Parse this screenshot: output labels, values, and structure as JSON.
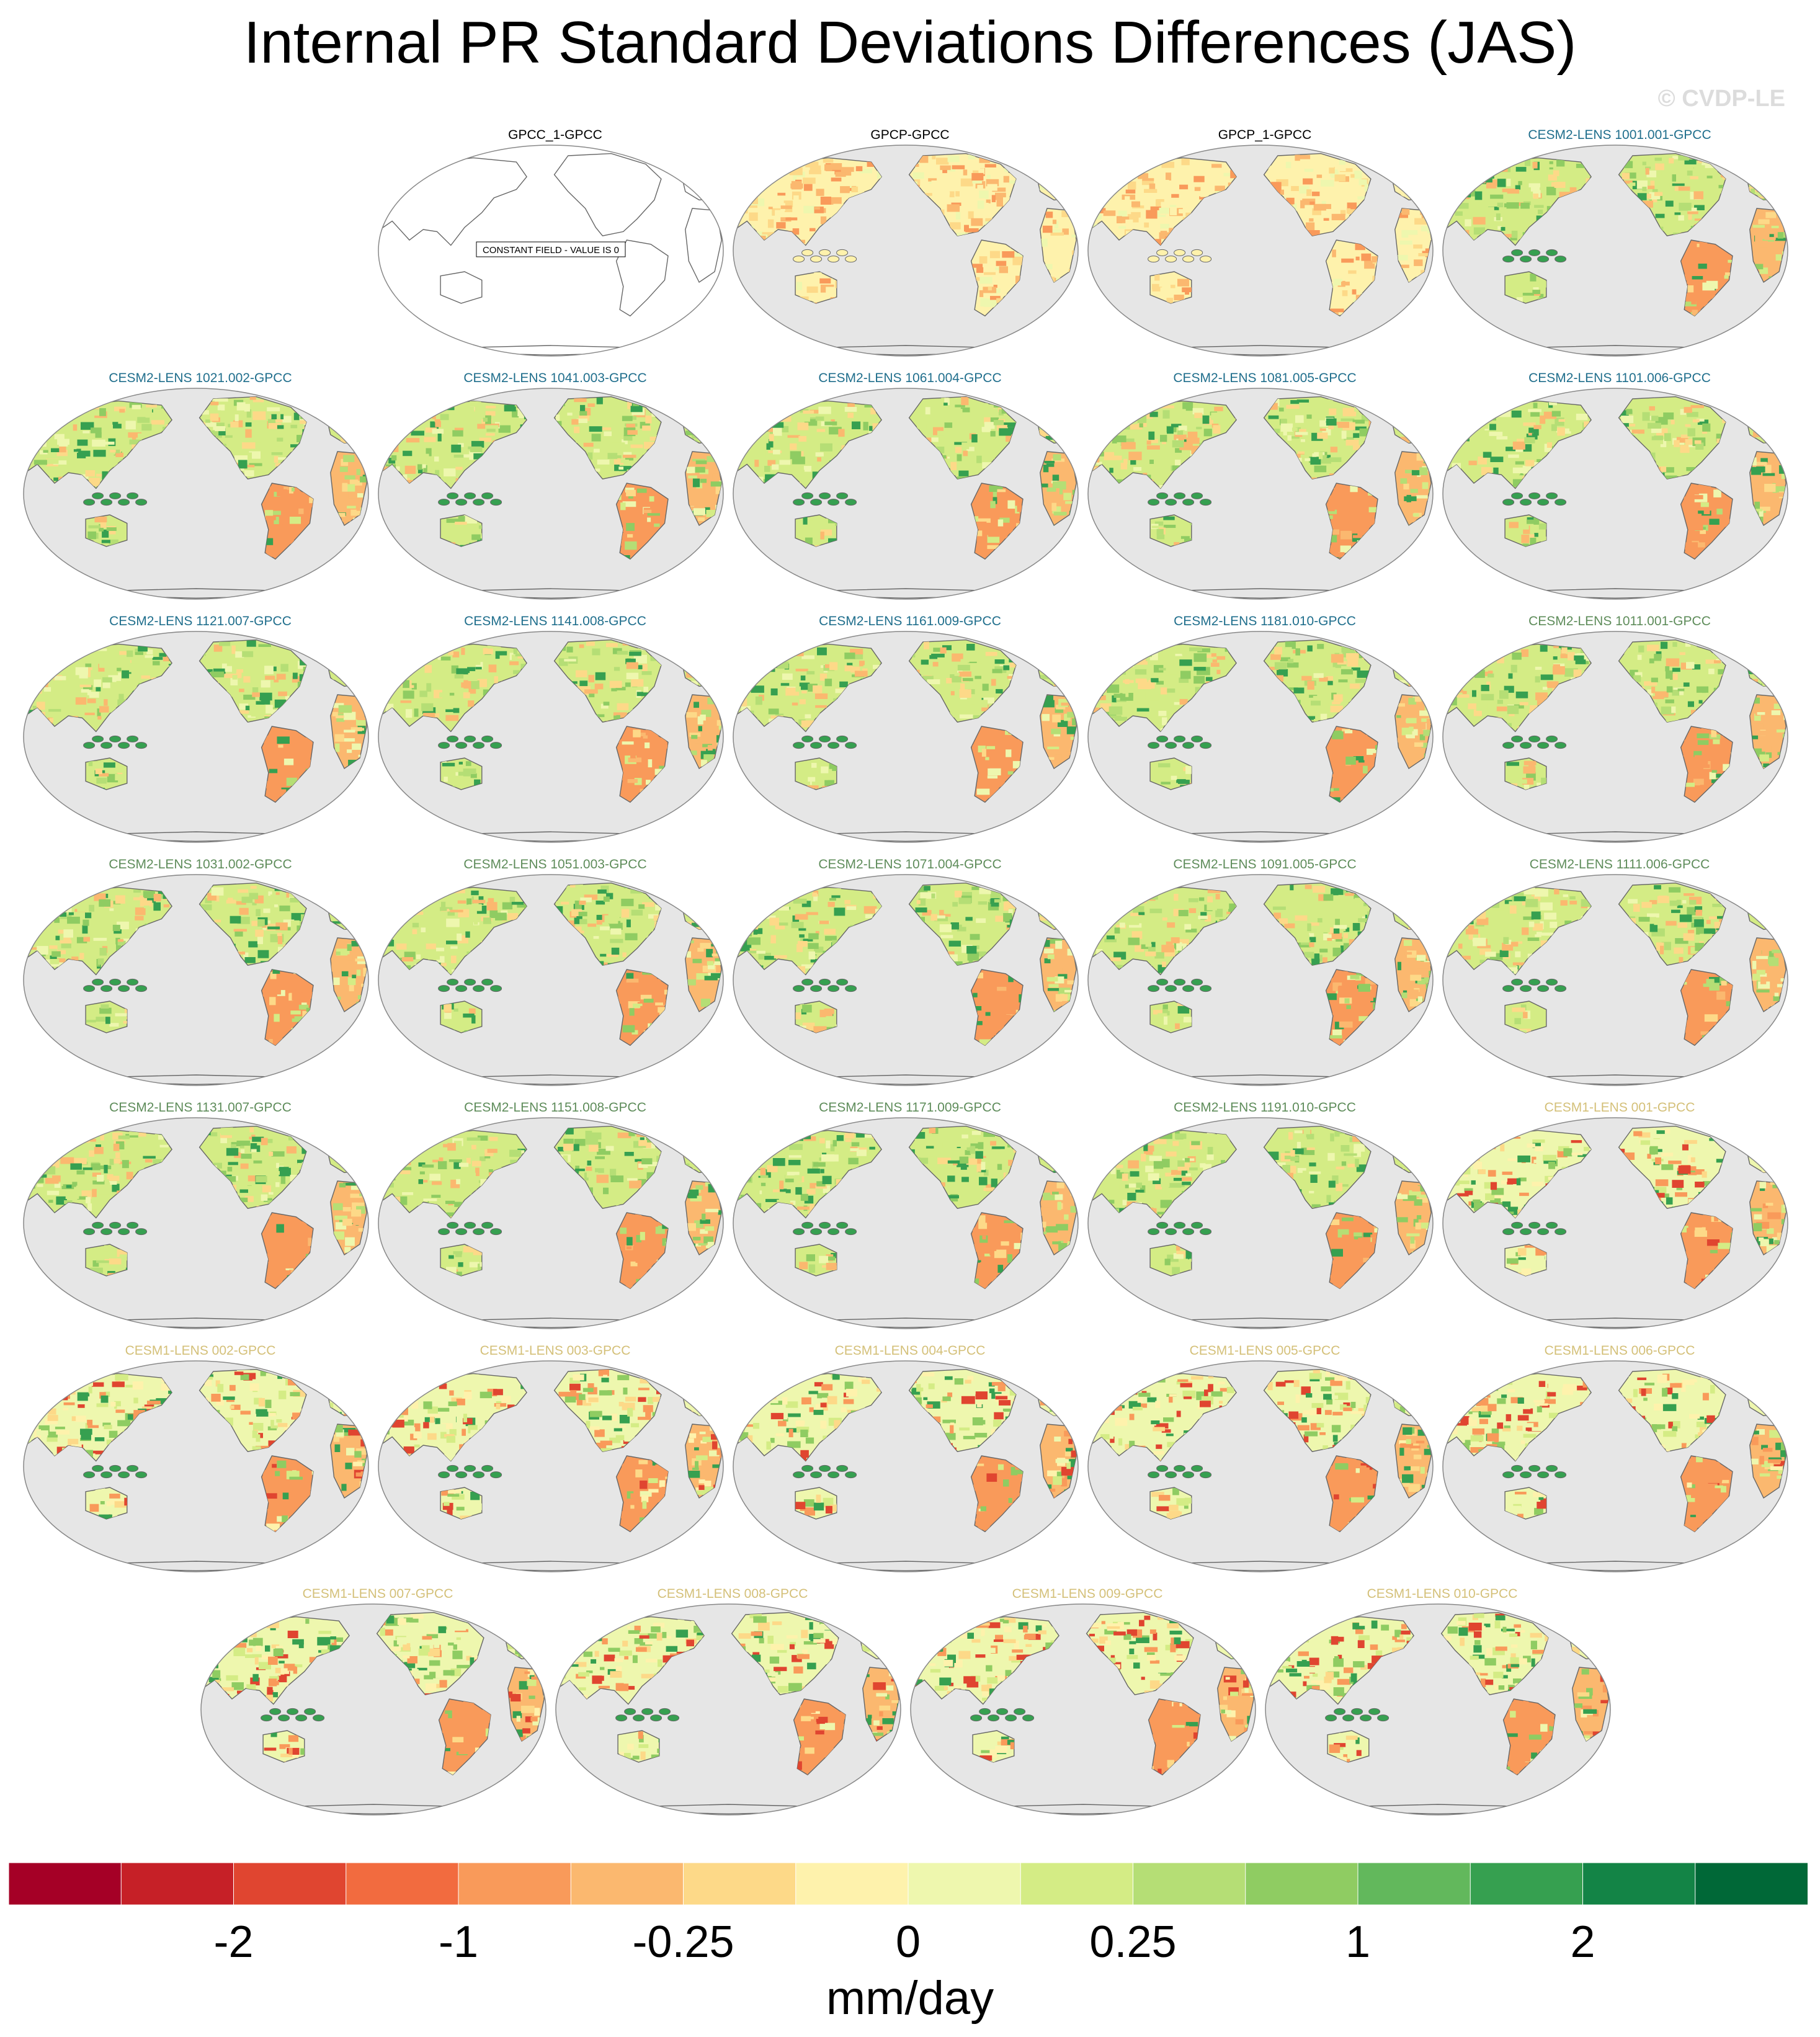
{
  "title": "Internal PR Standard Deviations Differences (JAS)",
  "credit": "© CVDP-LE",
  "colors": {
    "ocean": "#e6e6e6",
    "coast": "#666666",
    "title_obs": "#000000",
    "title_cesm2_a": "#1f6e8c",
    "title_cesm2_b": "#5e8c5a",
    "title_cesm1": "#d4c079"
  },
  "panels": [
    {
      "title": "GPCC_1-GPCC",
      "group": "obs",
      "constant": true,
      "constant_label": "CONSTANT FIELD - VALUE IS 0",
      "tone": 0
    },
    {
      "title": "GPCP-GPCC",
      "group": "obs",
      "tone": -1
    },
    {
      "title": "GPCP_1-GPCC",
      "group": "obs",
      "tone": -1
    },
    {
      "title": "CESM2-LENS 1001.001-GPCC",
      "group": "cesm2_a",
      "tone": 1
    },
    {
      "title": "CESM2-LENS 1021.002-GPCC",
      "group": "cesm2_a",
      "tone": 1
    },
    {
      "title": "CESM2-LENS 1041.003-GPCC",
      "group": "cesm2_a",
      "tone": 1
    },
    {
      "title": "CESM2-LENS 1061.004-GPCC",
      "group": "cesm2_a",
      "tone": 1
    },
    {
      "title": "CESM2-LENS 1081.005-GPCC",
      "group": "cesm2_a",
      "tone": 1
    },
    {
      "title": "CESM2-LENS 1101.006-GPCC",
      "group": "cesm2_a",
      "tone": 1
    },
    {
      "title": "CESM2-LENS 1121.007-GPCC",
      "group": "cesm2_a",
      "tone": 1
    },
    {
      "title": "CESM2-LENS 1141.008-GPCC",
      "group": "cesm2_a",
      "tone": 1
    },
    {
      "title": "CESM2-LENS 1161.009-GPCC",
      "group": "cesm2_a",
      "tone": 1
    },
    {
      "title": "CESM2-LENS 1181.010-GPCC",
      "group": "cesm2_a",
      "tone": 1
    },
    {
      "title": "CESM2-LENS 1011.001-GPCC",
      "group": "cesm2_b",
      "tone": 1
    },
    {
      "title": "CESM2-LENS 1031.002-GPCC",
      "group": "cesm2_b",
      "tone": 1
    },
    {
      "title": "CESM2-LENS 1051.003-GPCC",
      "group": "cesm2_b",
      "tone": 1
    },
    {
      "title": "CESM2-LENS 1071.004-GPCC",
      "group": "cesm2_b",
      "tone": 1
    },
    {
      "title": "CESM2-LENS 1091.005-GPCC",
      "group": "cesm2_b",
      "tone": 1
    },
    {
      "title": "CESM2-LENS 1111.006-GPCC",
      "group": "cesm2_b",
      "tone": 1
    },
    {
      "title": "CESM2-LENS 1131.007-GPCC",
      "group": "cesm2_b",
      "tone": 1
    },
    {
      "title": "CESM2-LENS 1151.008-GPCC",
      "group": "cesm2_b",
      "tone": 1
    },
    {
      "title": "CESM2-LENS 1171.009-GPCC",
      "group": "cesm2_b",
      "tone": 1
    },
    {
      "title": "CESM2-LENS 1191.010-GPCC",
      "group": "cesm2_b",
      "tone": 1
    },
    {
      "title": "CESM1-LENS 001-GPCC",
      "group": "cesm1",
      "tone": 2
    },
    {
      "title": "CESM1-LENS 002-GPCC",
      "group": "cesm1",
      "tone": 2
    },
    {
      "title": "CESM1-LENS 003-GPCC",
      "group": "cesm1",
      "tone": 2
    },
    {
      "title": "CESM1-LENS 004-GPCC",
      "group": "cesm1",
      "tone": 2
    },
    {
      "title": "CESM1-LENS 005-GPCC",
      "group": "cesm1",
      "tone": 2
    },
    {
      "title": "CESM1-LENS 006-GPCC",
      "group": "cesm1",
      "tone": 2
    },
    {
      "title": "CESM1-LENS 007-GPCC",
      "group": "cesm1",
      "tone": 2
    },
    {
      "title": "CESM1-LENS 008-GPCC",
      "group": "cesm1",
      "tone": 2
    },
    {
      "title": "CESM1-LENS 009-GPCC",
      "group": "cesm1",
      "tone": 2
    },
    {
      "title": "CESM1-LENS 010-GPCC",
      "group": "cesm1",
      "tone": 2
    }
  ],
  "colorbar": {
    "colors": [
      "#a50026",
      "#c62027",
      "#e04530",
      "#f26b3f",
      "#f99a5a",
      "#fbb86f",
      "#fdd988",
      "#fef2ac",
      "#eef7ae",
      "#d4ec85",
      "#b5de75",
      "#8fcc62",
      "#62b85c",
      "#36a050",
      "#138446",
      "#006837"
    ],
    "tick_labels": [
      "-2",
      "-1",
      "-0.25",
      "0",
      "0.25",
      "1",
      "2"
    ],
    "units": "mm/day"
  }
}
